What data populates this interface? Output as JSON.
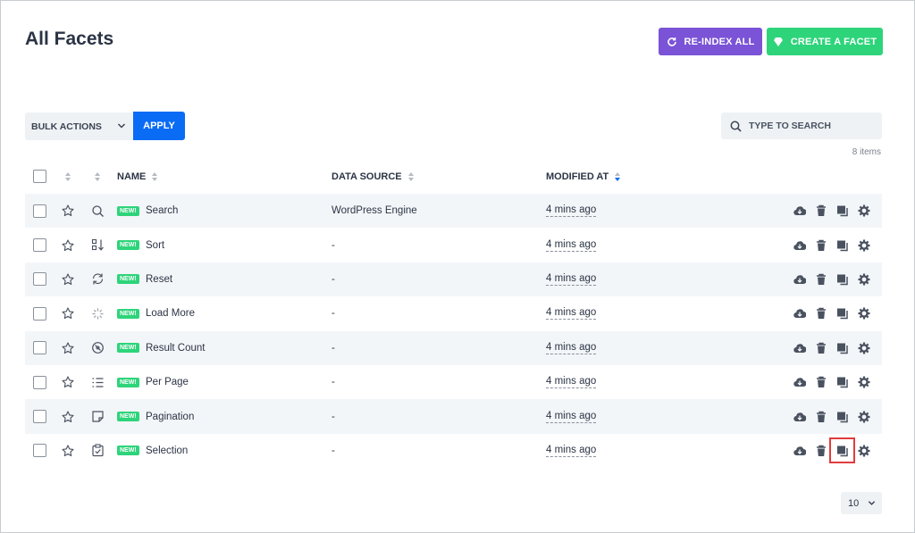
{
  "page": {
    "title": "All Facets"
  },
  "header": {
    "reindex_label": "RE-INDEX ALL",
    "create_label": "CREATE A FACET"
  },
  "toolbar": {
    "bulk_actions_label": "BULK ACTIONS",
    "apply_label": "APPLY",
    "search_placeholder": "TYPE TO SEARCH",
    "items_count": "8 items"
  },
  "table": {
    "columns": {
      "name": "NAME",
      "data_source": "DATA SOURCE",
      "modified_at": "MODIFIED AT"
    },
    "badge_label": "NEW!",
    "rows": [
      {
        "icon": "search-icon",
        "name": "Search",
        "data_source": "WordPress Engine",
        "modified": "4 mins ago"
      },
      {
        "icon": "sort-icon",
        "name": "Sort",
        "data_source": "-",
        "modified": "4 mins ago"
      },
      {
        "icon": "reset-icon",
        "name": "Reset",
        "data_source": "-",
        "modified": "4 mins ago"
      },
      {
        "icon": "load-more-icon",
        "name": "Load More",
        "data_source": "-",
        "modified": "4 mins ago"
      },
      {
        "icon": "result-count-icon",
        "name": "Result Count",
        "data_source": "-",
        "modified": "4 mins ago"
      },
      {
        "icon": "per-page-icon",
        "name": "Per Page",
        "data_source": "-",
        "modified": "4 mins ago"
      },
      {
        "icon": "pagination-icon",
        "name": "Pagination",
        "data_source": "-",
        "modified": "4 mins ago"
      },
      {
        "icon": "selection-icon",
        "name": "Selection",
        "data_source": "-",
        "modified": "4 mins ago"
      }
    ]
  },
  "pager": {
    "per_page": "10"
  },
  "colors": {
    "purple": "#7a53d6",
    "green": "#2ed47a",
    "blue": "#0a6cf5",
    "highlight": "#e23b3b"
  }
}
